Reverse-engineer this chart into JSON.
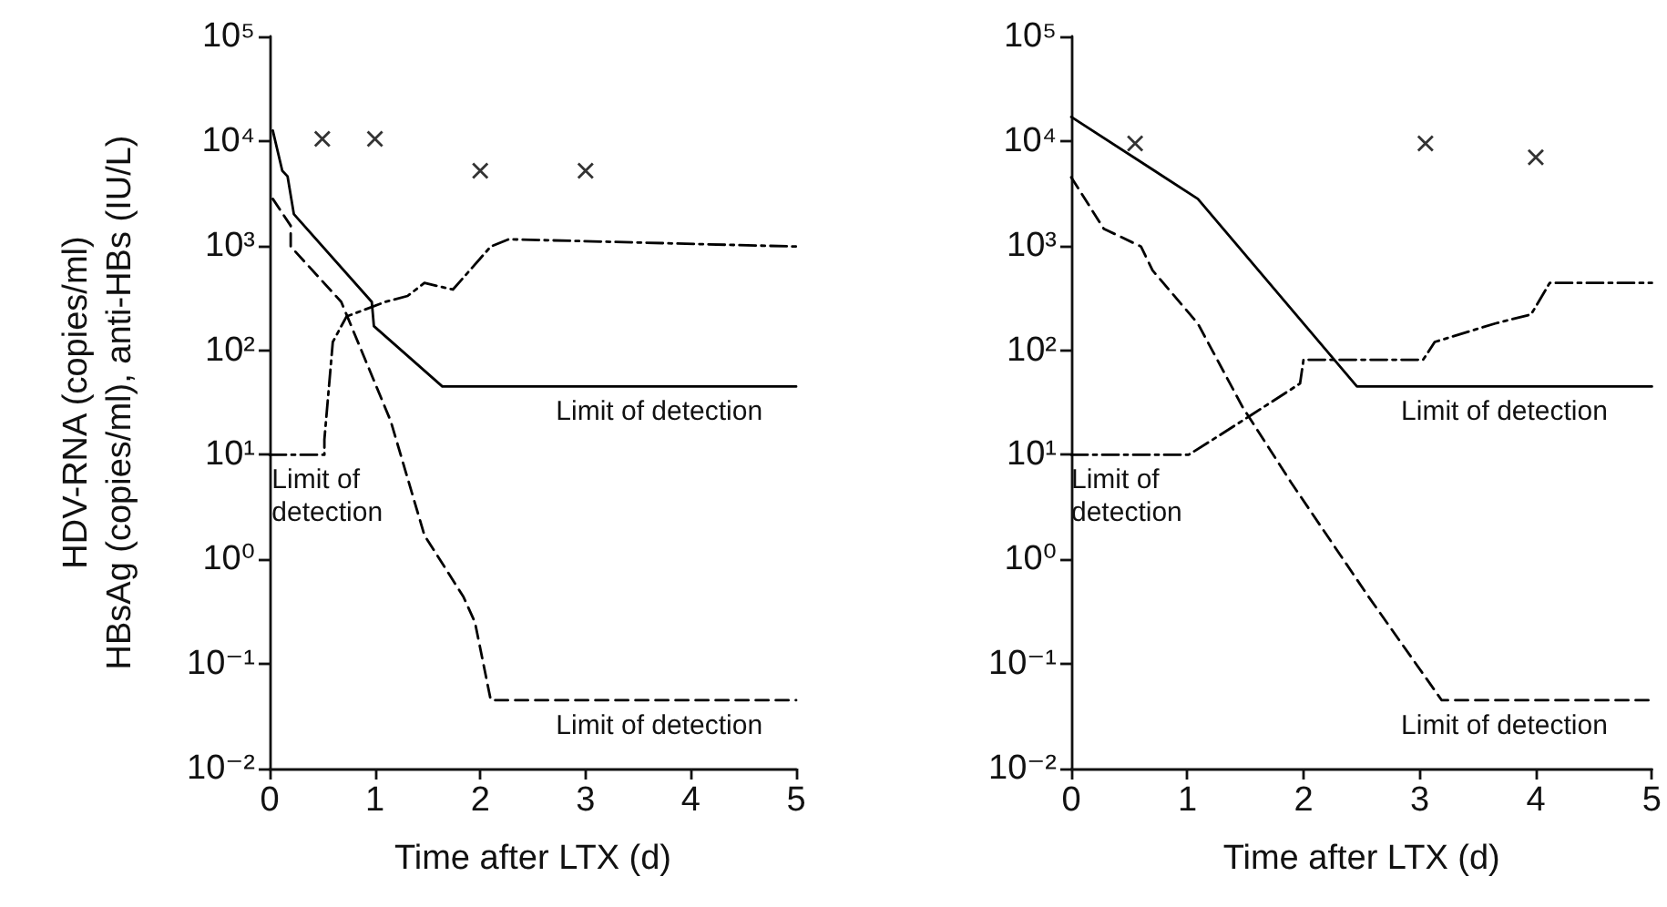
{
  "chart_data": [
    {
      "type": "line",
      "ylabel": "HDV-RNA (copies/ml)\nHBsAg (copies/ml), anti-HBs (IU/L)",
      "xlabel": "Time after LTX (d)",
      "log": "y",
      "grid": false,
      "xlim": [
        0,
        5
      ],
      "xticks": [
        0,
        1,
        2,
        3,
        4,
        5
      ],
      "ylim": [
        0.01,
        100000
      ],
      "yticks": [
        {
          "value": 0.01,
          "label": "10⁻²"
        },
        {
          "value": 0.1,
          "label": "10⁻¹"
        },
        {
          "value": 1,
          "label": "10⁰"
        },
        {
          "value": 10,
          "label": "10¹"
        },
        {
          "value": 100,
          "label": "10²"
        },
        {
          "value": 1000,
          "label": "10³"
        },
        {
          "value": 10000,
          "label": "10⁴"
        },
        {
          "value": 100000,
          "label": "10⁵"
        }
      ],
      "series": [
        {
          "color": "#000000",
          "line_style": "solid",
          "marker": "none",
          "x": [
            0.03,
            0.12,
            0.17,
            0.23,
            0.97,
            0.99,
            1.64,
            5
          ],
          "values": [
            12600,
            5200,
            4600,
            2000,
            290,
            170,
            45,
            45
          ]
        },
        {
          "color": "#000000",
          "line_style": "dashed",
          "marker": "none",
          "x": [
            0.03,
            0.2,
            0.2,
            0.68,
            1.15,
            1.47,
            1.84,
            1.95,
            2.1,
            5
          ],
          "values": [
            2800,
            1550,
            980,
            290,
            21,
            1.7,
            0.44,
            0.25,
            0.045,
            0.045
          ]
        },
        {
          "color": "#000000",
          "line_style": "dashdot",
          "marker": "none",
          "x": [
            0,
            0.52,
            0.52,
            0.6,
            0.73,
            1.1,
            1.31,
            1.47,
            1.74,
            2.1,
            2.27,
            5
          ],
          "values": [
            10,
            10,
            14,
            120,
            210,
            290,
            330,
            440,
            380,
            980,
            1150,
            980
          ]
        },
        {
          "type": "scatter",
          "color": "#000000",
          "marker": "cross",
          "x": [
            0.5,
            1,
            2,
            3
          ],
          "values": [
            10500,
            10500,
            5200,
            5200
          ]
        }
      ],
      "annotations": [
        {
          "text": "Limit of detection",
          "x": 3.7,
          "y": 45
        },
        {
          "text": "Limit of detection",
          "x": 3.7,
          "y": 0.045
        },
        {
          "text": "Limit of\ndetection",
          "x": 0.02,
          "y": 10
        }
      ]
    },
    {
      "type": "line",
      "xlabel": "Time after LTX (d)",
      "log": "y",
      "grid": false,
      "xlim": [
        0,
        5
      ],
      "xticks": [
        0,
        1,
        2,
        3,
        4,
        5
      ],
      "ylim": [
        0.01,
        100000
      ],
      "yticks": [
        {
          "value": 0.01,
          "label": "10⁻²"
        },
        {
          "value": 0.1,
          "label": "10⁻¹"
        },
        {
          "value": 1,
          "label": "10⁰"
        },
        {
          "value": 10,
          "label": "10¹"
        },
        {
          "value": 100,
          "label": "10²"
        },
        {
          "value": 1000,
          "label": "10³"
        },
        {
          "value": 10000,
          "label": "10⁴"
        },
        {
          "value": 100000,
          "label": "10⁵"
        }
      ],
      "series": [
        {
          "color": "#000000",
          "line_style": "solid",
          "marker": "none",
          "x": [
            0,
            1.09,
            2.46,
            5
          ],
          "values": [
            17000,
            2800,
            45,
            45
          ]
        },
        {
          "color": "#000000",
          "line_style": "dashed",
          "marker": "none",
          "x": [
            0,
            0.28,
            0.6,
            0.7,
            1.09,
            1.48,
            1.89,
            2.56,
            3.19,
            5
          ],
          "values": [
            4500,
            1450,
            980,
            580,
            180,
            28,
            5.5,
            0.44,
            0.045,
            0.045
          ]
        },
        {
          "color": "#000000",
          "line_style": "dashdot",
          "marker": "none",
          "x": [
            0,
            1.01,
            1.22,
            1.55,
            1.97,
            2.0,
            3.03,
            3.13,
            3.65,
            3.96,
            4.12,
            5
          ],
          "values": [
            10,
            10,
            14,
            24,
            48,
            81,
            81,
            120,
            180,
            220,
            440,
            440
          ]
        },
        {
          "type": "scatter",
          "color": "#000000",
          "marker": "cross",
          "x": [
            0.55,
            3.05,
            4
          ],
          "values": [
            9500,
            9500,
            7000
          ]
        }
      ],
      "annotations": [
        {
          "text": "Limit of detection",
          "x": 3.73,
          "y": 45
        },
        {
          "text": "Limit of detection",
          "x": 3.73,
          "y": 0.045
        },
        {
          "text": "Limit of\ndetection",
          "x": 0,
          "y": 10
        }
      ]
    }
  ]
}
